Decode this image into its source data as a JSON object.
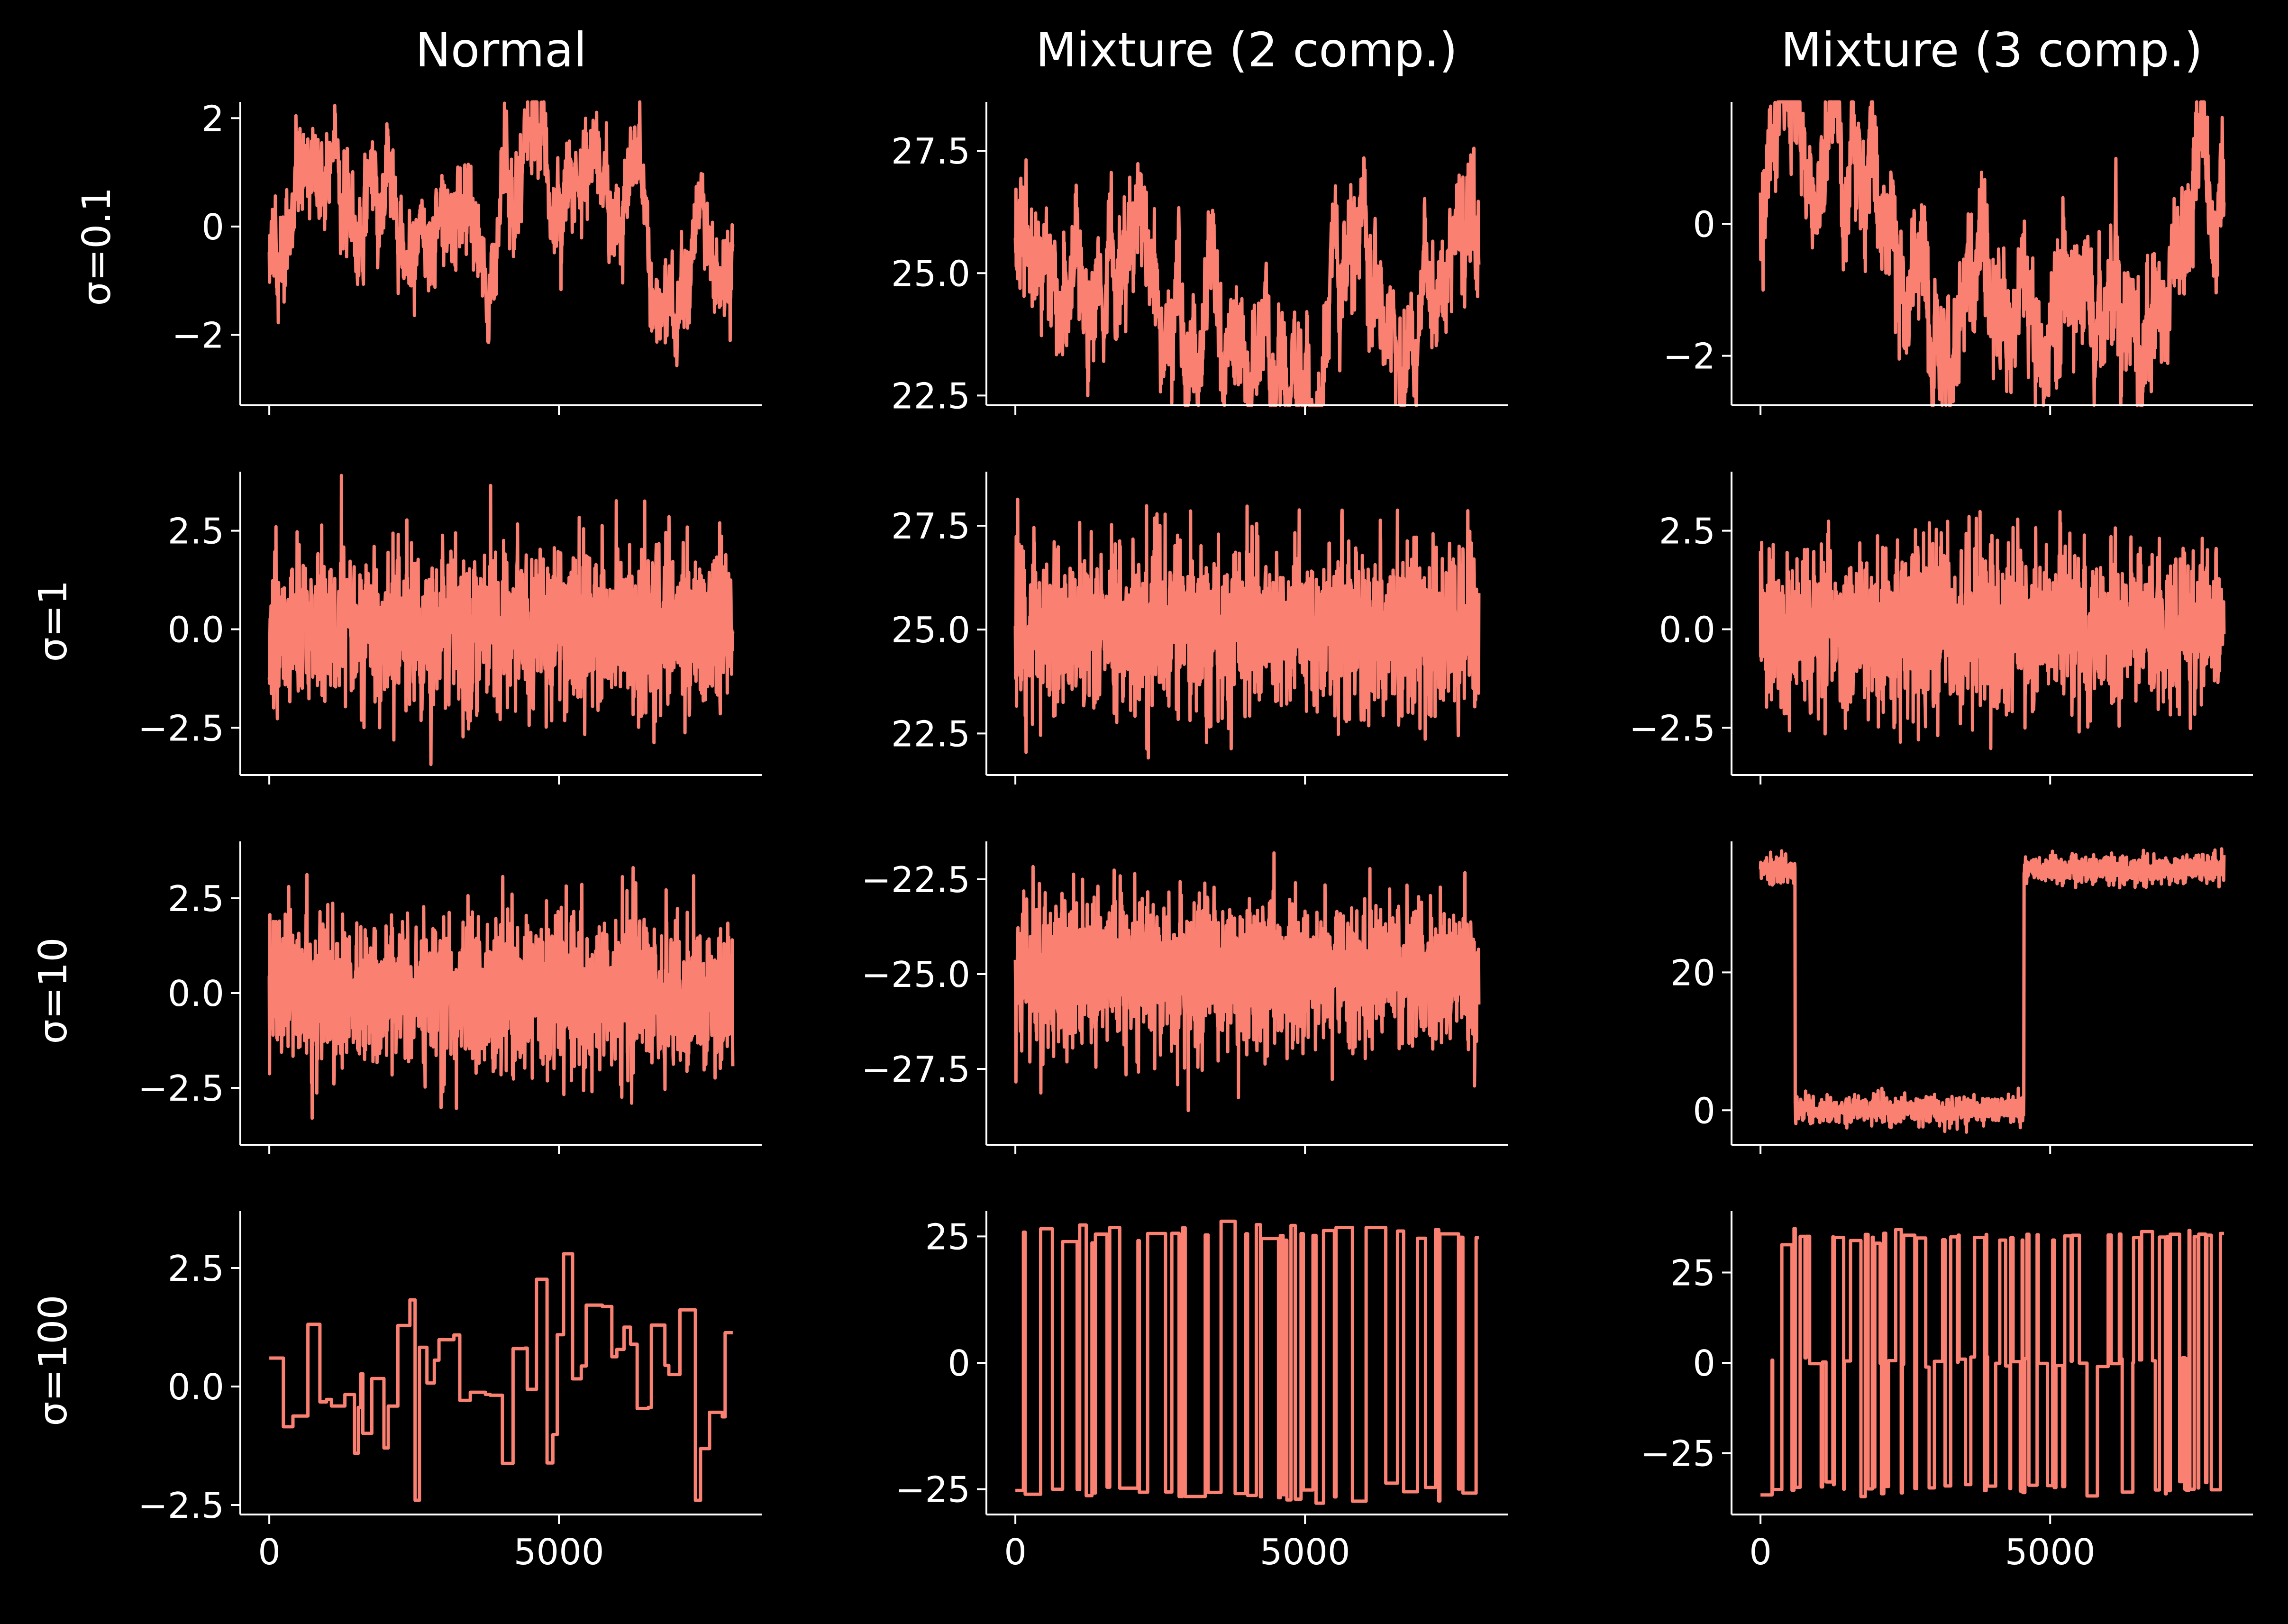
{
  "figure": {
    "background": "#000000",
    "trace_color": "#fa8072",
    "axis_color": "#ffffff",
    "column_titles": [
      "Normal",
      "Mixture (2 comp.)",
      "Mixture (3 comp.)"
    ],
    "row_labels": [
      "σ=0.1",
      "σ=1",
      "σ=10",
      "σ=100"
    ]
  },
  "chart_data": [
    {
      "type": "line",
      "row": 0,
      "col": 0,
      "title": "Normal",
      "ylabel": "σ=0.1",
      "style": "random-walk",
      "level": 0,
      "amp": 0.9,
      "noise": 0.35,
      "seed": 11,
      "xlim": [
        -500,
        8500
      ],
      "ylim": [
        -3.3,
        2.3
      ],
      "yticks": [
        -2,
        0,
        2
      ],
      "ytick_labels": [
        "−2",
        "0",
        "2"
      ],
      "xticks": [
        0,
        5000
      ],
      "xtick_labels": []
    },
    {
      "type": "line",
      "row": 0,
      "col": 1,
      "title": "Mixture (2 comp.)",
      "style": "random-walk",
      "level": 25.0,
      "amp": 1.2,
      "noise": 0.45,
      "seed": 12,
      "xlim": [
        -500,
        8500
      ],
      "ylim": [
        22.3,
        28.5
      ],
      "yticks": [
        22.5,
        25.0,
        27.5
      ],
      "ytick_labels": [
        "22.5",
        "25.0",
        "27.5"
      ],
      "xticks": [
        0,
        5000
      ],
      "xtick_labels": []
    },
    {
      "type": "line",
      "row": 0,
      "col": 2,
      "title": "Mixture (3 comp.)",
      "style": "random-walk",
      "level": -0.3,
      "amp": 0.9,
      "noise": 0.4,
      "seed": 13,
      "xlim": [
        -500,
        8500
      ],
      "ylim": [
        -2.75,
        1.85
      ],
      "yticks": [
        -2,
        0
      ],
      "ytick_labels": [
        "−2",
        "0"
      ],
      "xticks": [
        0,
        5000
      ],
      "xtick_labels": []
    },
    {
      "type": "line",
      "row": 1,
      "col": 0,
      "ylabel": "σ=1",
      "style": "noise",
      "level": 0,
      "sd": 1.0,
      "seed": 21,
      "xlim": [
        -500,
        8500
      ],
      "ylim": [
        -3.7,
        4.0
      ],
      "yticks": [
        -2.5,
        0,
        2.5
      ],
      "ytick_labels": [
        "−2.5",
        "0.0",
        "2.5"
      ],
      "xticks": [
        0,
        5000
      ],
      "xtick_labels": []
    },
    {
      "type": "line",
      "row": 1,
      "col": 1,
      "style": "noise",
      "level": 25.0,
      "sd": 1.0,
      "seed": 22,
      "xlim": [
        -500,
        8500
      ],
      "ylim": [
        21.5,
        28.8
      ],
      "yticks": [
        22.5,
        25.0,
        27.5
      ],
      "ytick_labels": [
        "22.5",
        "25.0",
        "27.5"
      ],
      "xticks": [
        0,
        5000
      ],
      "xtick_labels": []
    },
    {
      "type": "line",
      "row": 1,
      "col": 2,
      "style": "noise",
      "level": 0,
      "sd": 1.0,
      "seed": 23,
      "xlim": [
        -500,
        8500
      ],
      "ylim": [
        -3.7,
        4.0
      ],
      "yticks": [
        -2.5,
        0,
        2.5
      ],
      "ytick_labels": [
        "−2.5",
        "0.0",
        "2.5"
      ],
      "xticks": [
        0,
        5000
      ],
      "xtick_labels": []
    },
    {
      "type": "line",
      "row": 2,
      "col": 0,
      "ylabel": "σ=10",
      "style": "noise",
      "level": 0,
      "sd": 1.0,
      "seed": 31,
      "xlim": [
        -500,
        8500
      ],
      "ylim": [
        -4.0,
        4.0
      ],
      "yticks": [
        -2.5,
        0,
        2.5
      ],
      "ytick_labels": [
        "−2.5",
        "0.0",
        "2.5"
      ],
      "xticks": [
        0,
        5000
      ],
      "xtick_labels": []
    },
    {
      "type": "line",
      "row": 2,
      "col": 1,
      "style": "noise",
      "level": -25.0,
      "sd": 1.0,
      "seed": 32,
      "xlim": [
        -500,
        8500
      ],
      "ylim": [
        -29.5,
        -21.5
      ],
      "yticks": [
        -27.5,
        -25.0,
        -22.5
      ],
      "ytick_labels": [
        "−27.5",
        "−25.0",
        "−22.5"
      ],
      "xticks": [
        0,
        5000
      ],
      "xtick_labels": []
    },
    {
      "type": "line",
      "row": 2,
      "col": 2,
      "style": "segments",
      "segments": [
        [
          0,
          600,
          35
        ],
        [
          600,
          4550,
          0
        ],
        [
          4550,
          8000,
          35
        ]
      ],
      "sd": 1.0,
      "seed": 33,
      "xlim": [
        -500,
        8500
      ],
      "ylim": [
        -5,
        39
      ],
      "yticks": [
        0,
        20
      ],
      "ytick_labels": [
        "0",
        "20"
      ],
      "xticks": [
        0,
        5000
      ],
      "xtick_labels": []
    },
    {
      "type": "line",
      "row": 3,
      "col": 0,
      "ylabel": "σ=100",
      "style": "jumps",
      "levels": [
        -2.4,
        2.8
      ],
      "hold": [
        30,
        280
      ],
      "seed": 41,
      "xlim": [
        -500,
        8500
      ],
      "ylim": [
        -2.7,
        3.7
      ],
      "yticks": [
        -2.5,
        0,
        2.5
      ],
      "ytick_labels": [
        "−2.5",
        "0.0",
        "2.5"
      ],
      "xticks": [
        0,
        5000
      ],
      "xtick_labels": [
        "0",
        "5000"
      ]
    },
    {
      "type": "line",
      "row": 3,
      "col": 1,
      "style": "switch",
      "states": [
        -26,
        26
      ],
      "jitter": 1.0,
      "hold": [
        20,
        350
      ],
      "seed": 42,
      "xlim": [
        -500,
        8500
      ],
      "ylim": [
        -30,
        30
      ],
      "yticks": [
        -25,
        0,
        25
      ],
      "ytick_labels": [
        "−25",
        "0",
        "25"
      ],
      "xticks": [
        0,
        5000
      ],
      "xtick_labels": [
        "0",
        "5000"
      ]
    },
    {
      "type": "line",
      "row": 3,
      "col": 2,
      "style": "switch",
      "states": [
        -35,
        0,
        35
      ],
      "jitter": 1.0,
      "hold": [
        10,
        200
      ],
      "seed": 43,
      "xlim": [
        -500,
        8500
      ],
      "ylim": [
        -42,
        42
      ],
      "yticks": [
        -25,
        0,
        25
      ],
      "ytick_labels": [
        "−25",
        "0",
        "25"
      ],
      "xticks": [
        0,
        5000
      ],
      "xtick_labels": [
        "0",
        "5000"
      ]
    }
  ]
}
